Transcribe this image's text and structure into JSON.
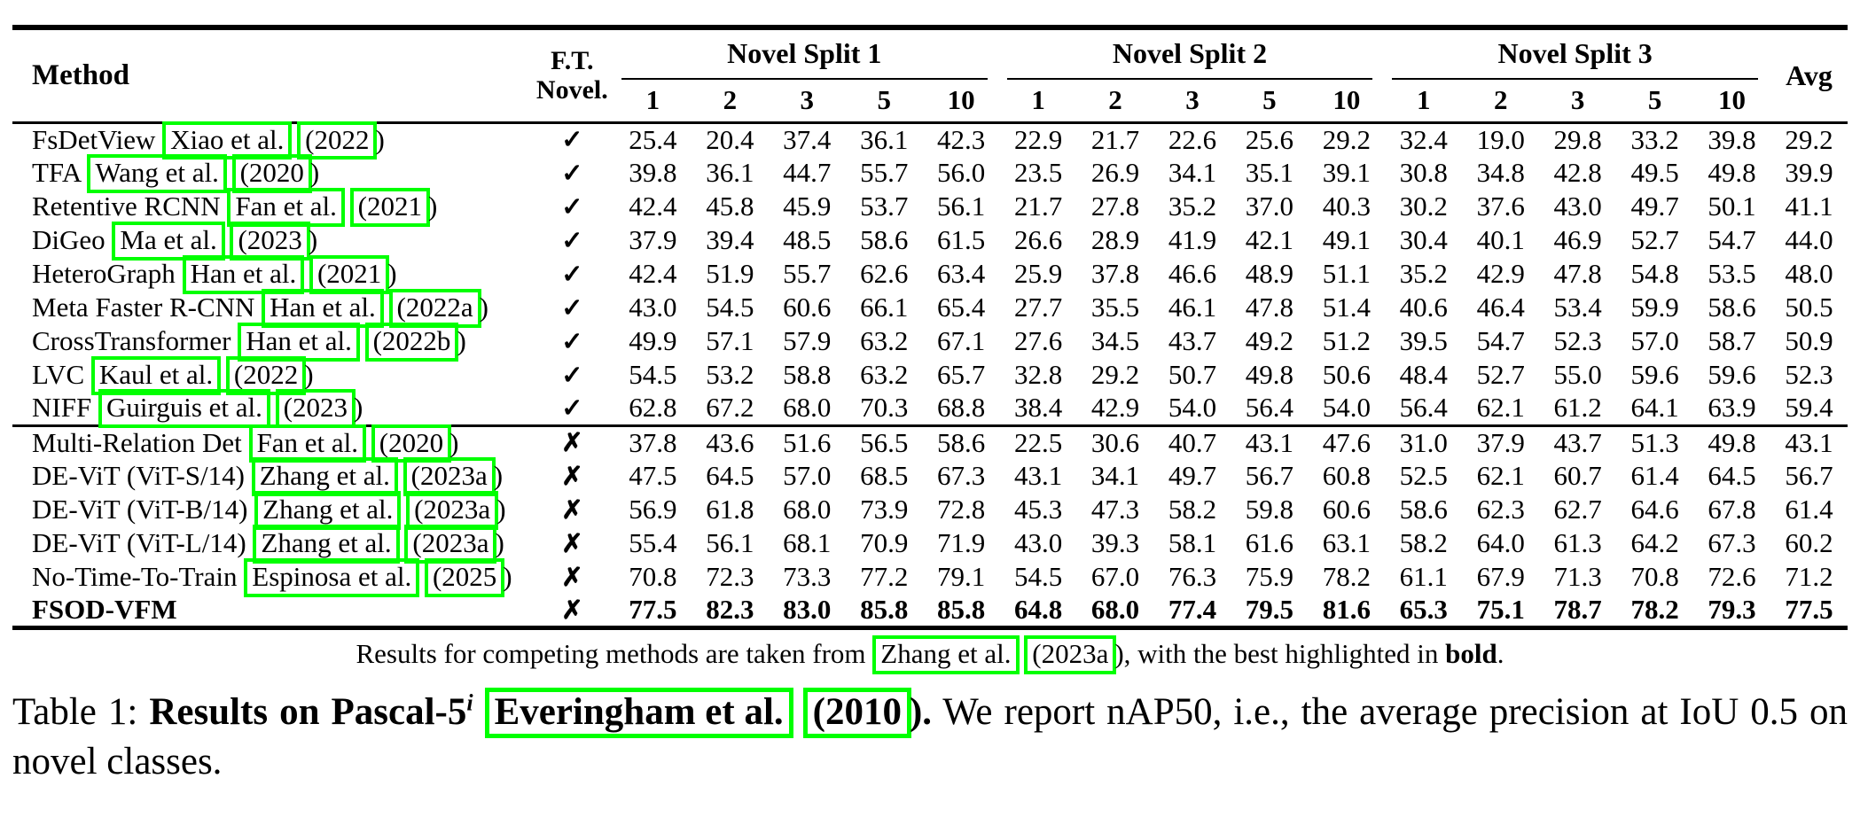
{
  "colors": {
    "link_box": "#00ff00",
    "text": "#000000",
    "background": "#ffffff"
  },
  "table": {
    "header": {
      "method": "Method",
      "ft_line1": "F.T.",
      "ft_line2": "Novel.",
      "groups": [
        "Novel Split 1",
        "Novel Split 2",
        "Novel Split 3"
      ],
      "shots": [
        "1",
        "2",
        "3",
        "5",
        "10"
      ],
      "avg": "Avg"
    },
    "rows": [
      {
        "method": "FsDetView",
        "authors": "Xiao et al.",
        "year": "(2022",
        "paren": ")",
        "ft": "✓",
        "bold": false,
        "group_start": false,
        "values": [
          "25.4",
          "20.4",
          "37.4",
          "36.1",
          "42.3",
          "22.9",
          "21.7",
          "22.6",
          "25.6",
          "29.2",
          "32.4",
          "19.0",
          "29.8",
          "33.2",
          "39.8",
          "29.2"
        ]
      },
      {
        "method": "TFA",
        "authors": "Wang et al.",
        "year": "(2020",
        "paren": ")",
        "ft": "✓",
        "bold": false,
        "group_start": false,
        "values": [
          "39.8",
          "36.1",
          "44.7",
          "55.7",
          "56.0",
          "23.5",
          "26.9",
          "34.1",
          "35.1",
          "39.1",
          "30.8",
          "34.8",
          "42.8",
          "49.5",
          "49.8",
          "39.9"
        ]
      },
      {
        "method": "Retentive RCNN",
        "authors": "Fan et al.",
        "year": "(2021",
        "paren": ")",
        "ft": "✓",
        "bold": false,
        "group_start": false,
        "values": [
          "42.4",
          "45.8",
          "45.9",
          "53.7",
          "56.1",
          "21.7",
          "27.8",
          "35.2",
          "37.0",
          "40.3",
          "30.2",
          "37.6",
          "43.0",
          "49.7",
          "50.1",
          "41.1"
        ]
      },
      {
        "method": "DiGeo",
        "authors": "Ma et al.",
        "year": "(2023",
        "paren": ")",
        "ft": "✓",
        "bold": false,
        "group_start": false,
        "values": [
          "37.9",
          "39.4",
          "48.5",
          "58.6",
          "61.5",
          "26.6",
          "28.9",
          "41.9",
          "42.1",
          "49.1",
          "30.4",
          "40.1",
          "46.9",
          "52.7",
          "54.7",
          "44.0"
        ]
      },
      {
        "method": "HeteroGraph",
        "authors": "Han et al.",
        "year": "(2021",
        "paren": ")",
        "ft": "✓",
        "bold": false,
        "group_start": false,
        "values": [
          "42.4",
          "51.9",
          "55.7",
          "62.6",
          "63.4",
          "25.9",
          "37.8",
          "46.6",
          "48.9",
          "51.1",
          "35.2",
          "42.9",
          "47.8",
          "54.8",
          "53.5",
          "48.0"
        ]
      },
      {
        "method": "Meta Faster R-CNN",
        "authors": "Han et al.",
        "year": "(2022a",
        "paren": ")",
        "ft": "✓",
        "bold": false,
        "group_start": false,
        "values": [
          "43.0",
          "54.5",
          "60.6",
          "66.1",
          "65.4",
          "27.7",
          "35.5",
          "46.1",
          "47.8",
          "51.4",
          "40.6",
          "46.4",
          "53.4",
          "59.9",
          "58.6",
          "50.5"
        ]
      },
      {
        "method": "CrossTransformer",
        "authors": "Han et al.",
        "year": "(2022b",
        "paren": ")",
        "ft": "✓",
        "bold": false,
        "group_start": false,
        "values": [
          "49.9",
          "57.1",
          "57.9",
          "63.2",
          "67.1",
          "27.6",
          "34.5",
          "43.7",
          "49.2",
          "51.2",
          "39.5",
          "54.7",
          "52.3",
          "57.0",
          "58.7",
          "50.9"
        ]
      },
      {
        "method": "LVC",
        "authors": "Kaul et al.",
        "year": "(2022",
        "paren": ")",
        "ft": "✓",
        "bold": false,
        "group_start": false,
        "values": [
          "54.5",
          "53.2",
          "58.8",
          "63.2",
          "65.7",
          "32.8",
          "29.2",
          "50.7",
          "49.8",
          "50.6",
          "48.4",
          "52.7",
          "55.0",
          "59.6",
          "59.6",
          "52.3"
        ]
      },
      {
        "method": "NIFF",
        "authors": "Guirguis et al.",
        "year": "(2023",
        "paren": ")",
        "ft": "✓",
        "bold": false,
        "group_start": false,
        "values": [
          "62.8",
          "67.2",
          "68.0",
          "70.3",
          "68.8",
          "38.4",
          "42.9",
          "54.0",
          "56.4",
          "54.0",
          "56.4",
          "62.1",
          "61.2",
          "64.1",
          "63.9",
          "59.4"
        ]
      },
      {
        "method": "Multi-Relation Det",
        "authors": "Fan et al.",
        "year": "(2020",
        "paren": ")",
        "ft": "✗",
        "bold": false,
        "group_start": true,
        "values": [
          "37.8",
          "43.6",
          "51.6",
          "56.5",
          "58.6",
          "22.5",
          "30.6",
          "40.7",
          "43.1",
          "47.6",
          "31.0",
          "37.9",
          "43.7",
          "51.3",
          "49.8",
          "43.1"
        ]
      },
      {
        "method": "DE-ViT (ViT-S/14)",
        "authors": "Zhang et al.",
        "year": "(2023a",
        "paren": ")",
        "ft": "✗",
        "bold": false,
        "group_start": false,
        "values": [
          "47.5",
          "64.5",
          "57.0",
          "68.5",
          "67.3",
          "43.1",
          "34.1",
          "49.7",
          "56.7",
          "60.8",
          "52.5",
          "62.1",
          "60.7",
          "61.4",
          "64.5",
          "56.7"
        ]
      },
      {
        "method": "DE-ViT (ViT-B/14)",
        "authors": "Zhang et al.",
        "year": "(2023a",
        "paren": ")",
        "ft": "✗",
        "bold": false,
        "group_start": false,
        "values": [
          "56.9",
          "61.8",
          "68.0",
          "73.9",
          "72.8",
          "45.3",
          "47.3",
          "58.2",
          "59.8",
          "60.6",
          "58.6",
          "62.3",
          "62.7",
          "64.6",
          "67.8",
          "61.4"
        ]
      },
      {
        "method": "DE-ViT (ViT-L/14)",
        "authors": "Zhang et al.",
        "year": "(2023a",
        "paren": ")",
        "ft": "✗",
        "bold": false,
        "group_start": false,
        "values": [
          "55.4",
          "56.1",
          "68.1",
          "70.9",
          "71.9",
          "43.0",
          "39.3",
          "58.1",
          "61.6",
          "63.1",
          "58.2",
          "64.0",
          "61.3",
          "64.2",
          "67.3",
          "60.2"
        ]
      },
      {
        "method": "No-Time-To-Train",
        "authors": "Espinosa et al.",
        "year": "(2025",
        "paren": ")",
        "ft": "✗",
        "bold": false,
        "group_start": false,
        "values": [
          "70.8",
          "72.3",
          "73.3",
          "77.2",
          "79.1",
          "54.5",
          "67.0",
          "76.3",
          "75.9",
          "78.2",
          "61.1",
          "67.9",
          "71.3",
          "70.8",
          "72.6",
          "71.2"
        ]
      },
      {
        "method": "FSOD-VFM",
        "authors": "",
        "year": "",
        "paren": "",
        "ft": "✗",
        "bold": true,
        "group_start": false,
        "values": [
          "77.5",
          "82.3",
          "83.0",
          "85.8",
          "85.8",
          "64.8",
          "68.0",
          "77.4",
          "79.5",
          "81.6",
          "65.3",
          "75.1",
          "78.7",
          "78.2",
          "79.3",
          "77.5"
        ]
      }
    ],
    "footnote": {
      "pre": "Results for competing methods are taken from ",
      "authors": "Zhang et al.",
      "year": "(2023a",
      "post1": "), with the best highlighted in ",
      "bold_word": "bold",
      "post2": "."
    }
  },
  "caption": {
    "label": "Table 1:",
    "bold_intro": "Results on Pascal-5",
    "sup": "i",
    "authors": "Everingham et al.",
    "year": "(2010",
    "bold_close": ").",
    "rest": "We report nAP50, i.e., the average precision at IoU 0.5 on novel classes."
  }
}
